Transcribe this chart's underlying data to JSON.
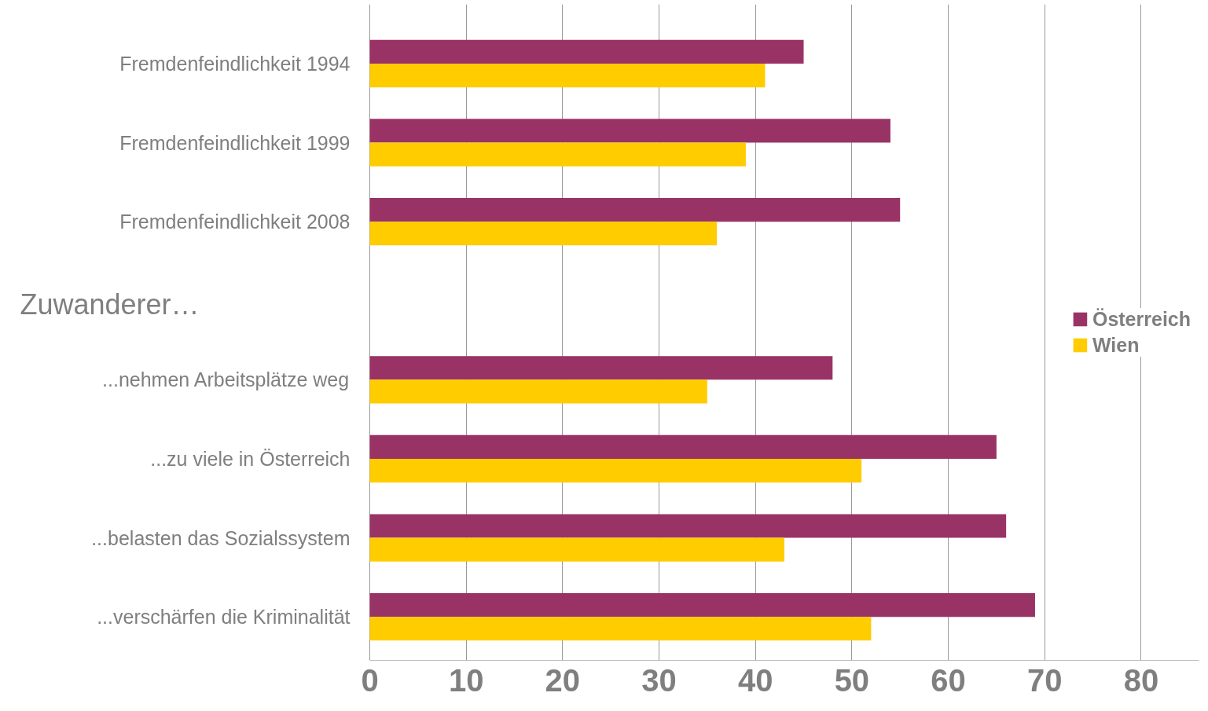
{
  "chart_data": {
    "type": "bar",
    "orientation": "horizontal",
    "categories": [
      "Fremdenfeindlichkeit 1994",
      "Fremdenfeindlichkeit 1999",
      "Fremdenfeindlichkeit 2008",
      null,
      "...nehmen Arbeitsplätze weg",
      "...zu viele in Österreich",
      "...belasten das Sozialssystem",
      "...verschärfen die Kriminalität"
    ],
    "series": [
      {
        "name": "Österreich",
        "color": "#993366",
        "values": [
          45,
          54,
          55,
          null,
          48,
          65,
          66,
          69
        ]
      },
      {
        "name": "Wien",
        "color": "#ffcc00",
        "values": [
          41,
          39,
          36,
          null,
          35,
          51,
          43,
          52
        ]
      }
    ],
    "annotations": [
      "Zuwanderer…"
    ],
    "xlim": [
      0,
      86
    ],
    "xticks": [
      0,
      10,
      20,
      30,
      40,
      50,
      60,
      70,
      80
    ],
    "grid": "x",
    "legend": "right"
  }
}
